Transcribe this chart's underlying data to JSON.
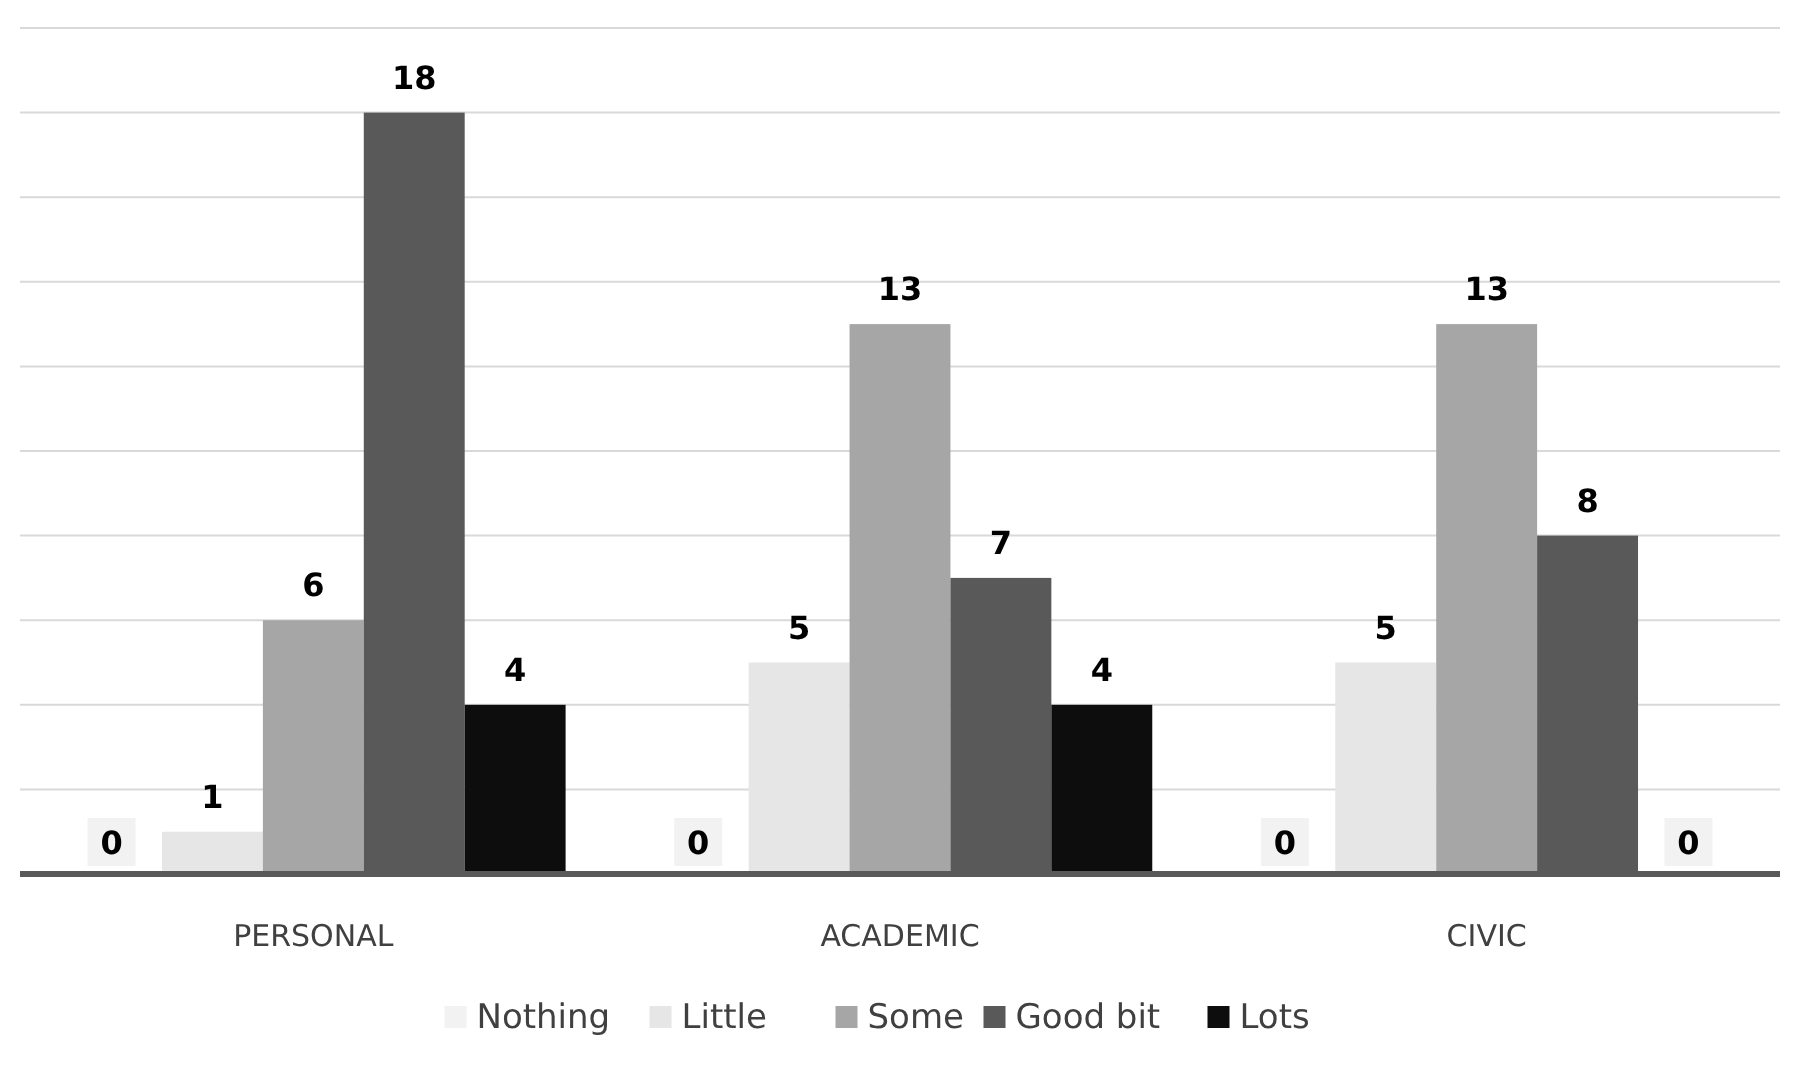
{
  "chart_data": {
    "type": "bar",
    "categories": [
      "PERSONAL",
      "ACADEMIC",
      "CIVIC"
    ],
    "series": [
      {
        "name": "Nothing",
        "color": "#f2f2f2",
        "values": [
          0,
          0,
          0
        ]
      },
      {
        "name": "Little",
        "color": "#e6e6e6",
        "values": [
          1,
          5,
          5
        ]
      },
      {
        "name": "Some",
        "color": "#a6a6a6",
        "values": [
          6,
          13,
          13
        ]
      },
      {
        "name": "Good bit",
        "color": "#595959",
        "values": [
          18,
          7,
          8
        ]
      },
      {
        "name": "Lots",
        "color": "#0d0d0d",
        "values": [
          4,
          4,
          0
        ]
      }
    ],
    "ylim": [
      0,
      20
    ],
    "yticks": [
      {
        "value": 0,
        "label": null
      },
      {
        "value": 2,
        "label": null
      },
      {
        "value": 4,
        "label": null
      },
      {
        "value": 6,
        "label": null
      },
      {
        "value": 8,
        "label": null
      },
      {
        "value": 10,
        "label": null
      },
      {
        "value": 12,
        "label": null
      },
      {
        "value": 14,
        "label": null
      },
      {
        "value": 16,
        "label": null
      },
      {
        "value": 18,
        "label": null
      },
      {
        "value": 20,
        "label": null
      }
    ],
    "tick_labels": "x",
    "grid": "y",
    "data_labels": true,
    "legend": "bottom"
  }
}
